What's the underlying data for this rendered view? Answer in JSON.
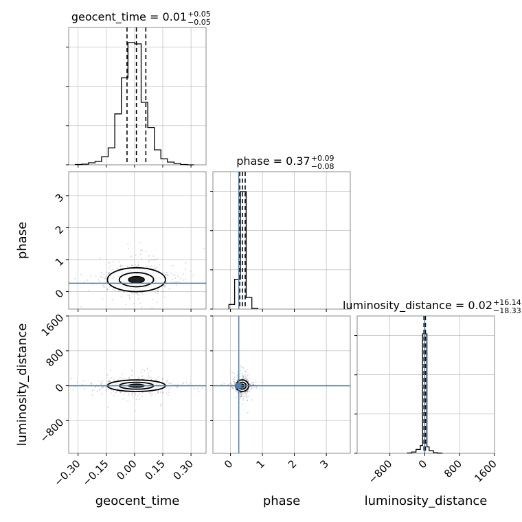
{
  "chart_data": {
    "type": "corner",
    "parameters": [
      {
        "name": "geocent_time",
        "axis_label": "geocent_time",
        "title": "geocent_time = 0.01",
        "median": 0.01,
        "err_plus": "+0.05",
        "err_minus": "−0.05",
        "quantiles": [
          -0.04,
          0.01,
          0.06
        ],
        "range": [
          -0.35,
          0.38
        ],
        "ticks": [
          -0.3,
          -0.15,
          0.0,
          0.15,
          0.3
        ],
        "tick_labels": [
          "−0.30",
          "−0.15",
          "0.00",
          "0.15",
          "0.30"
        ],
        "injection": null,
        "histogram": {
          "edges": [
            -0.315,
            -0.28,
            -0.245,
            -0.21,
            -0.175,
            -0.14,
            -0.105,
            -0.07,
            -0.035,
            0.0,
            0.035,
            0.07,
            0.105,
            0.14,
            0.175,
            0.21,
            0.245,
            0.28,
            0.315
          ],
          "counts": [
            0.5,
            1,
            3,
            5,
            12,
            25,
            75,
            128,
            180,
            178,
            92,
            55,
            22,
            9,
            4,
            2,
            0.5,
            0
          ],
          "ymax": 190
        }
      },
      {
        "name": "phase",
        "axis_label": "phase",
        "title": "phase = 0.37",
        "median": 0.37,
        "err_plus": "+0.09",
        "err_minus": "−0.08",
        "quantiles": [
          0.29,
          0.37,
          0.46
        ],
        "range": [
          -0.55,
          3.75
        ],
        "ticks": [
          0,
          1,
          2,
          3
        ],
        "tick_labels": [
          "0",
          "1",
          "2",
          "3"
        ],
        "injection": 0.26,
        "histogram": {
          "edges": [
            -0.05,
            0.13,
            0.31,
            0.49,
            0.67,
            0.85
          ],
          "counts": [
            14,
            90,
            355,
            35,
            2
          ],
          "ymax": 390
        }
      },
      {
        "name": "luminosity_distance",
        "axis_label": "luminosity_distance",
        "title": "luminosity_distance = 0.02",
        "median": 0.02,
        "err_plus": "+16.14",
        "err_minus": "−18.33",
        "quantiles": [
          -18.3,
          0.02,
          16.2
        ],
        "range": [
          -1550,
          1600
        ],
        "ticks": [
          -800,
          0,
          800,
          1600
        ],
        "tick_labels": [
          "−800",
          "0",
          "800",
          "1600"
        ],
        "injection": 0,
        "histogram": {
          "edges": [
            -400,
            -300,
            -200,
            -100,
            -50,
            50,
            100,
            200,
            300,
            400
          ],
          "counts": [
            0.5,
            2,
            6,
            12,
            185,
            10,
            4,
            1,
            0.3
          ],
          "ymax": 200
        }
      }
    ],
    "pairs": [
      {
        "x": "geocent_time",
        "y": "phase",
        "y_ticks": [
          0,
          1,
          2,
          3
        ],
        "y_tick_labels": [
          "0",
          "1",
          "2",
          "3"
        ],
        "center": [
          0.01,
          0.37
        ],
        "spread": [
          0.07,
          0.17
        ],
        "injection_y": 0.26,
        "injection_x": null
      },
      {
        "x": "geocent_time",
        "y": "luminosity_distance",
        "y_ticks": [
          -800,
          0,
          800,
          1600
        ],
        "y_tick_labels": [
          "−800",
          "0",
          "800",
          "1600"
        ],
        "center": [
          0.01,
          0.02
        ],
        "spread": [
          0.07,
          60
        ],
        "injection_y": 0,
        "injection_x": null
      },
      {
        "x": "phase",
        "y": "luminosity_distance",
        "y_ticks": [
          -800,
          0,
          800,
          1600
        ],
        "y_tick_labels": [
          "−800",
          "0",
          "800",
          "1600"
        ],
        "center": [
          0.37,
          0.02
        ],
        "spread": [
          0.09,
          60
        ],
        "injection_y": 0,
        "injection_x": 0.26
      }
    ],
    "grid": true,
    "colors": {
      "samples": "#000000",
      "injection": "#4682b4",
      "grid": "#b0b0b0",
      "frame": "#888888"
    }
  }
}
